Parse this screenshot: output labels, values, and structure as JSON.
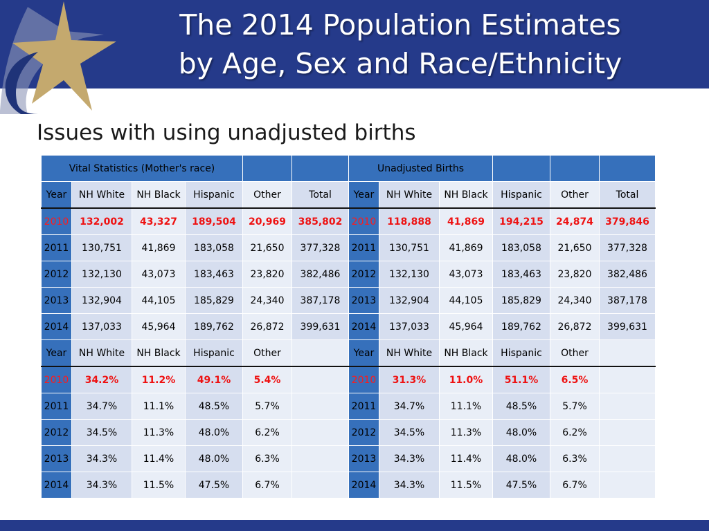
{
  "slide": {
    "title_line1": "The 2014 Population Estimates",
    "title_line2": "by Age, Sex and Race/Ethnicity",
    "subtitle": "Issues with using unadjusted births"
  },
  "colors": {
    "header_bg": "#253a8a",
    "cell_blue": "#3670bb",
    "highlight_red": "#ee1111"
  },
  "table": {
    "left_banner": "Vital Statistics (Mother's race)",
    "right_banner": "Unadjusted Births",
    "count_headers": [
      "Year",
      "NH White",
      "NH Black",
      "Hispanic",
      "Other",
      "Total"
    ],
    "count_rows": [
      {
        "left": [
          "2010",
          "132,002",
          "43,327",
          "189,504",
          "20,969",
          "385,802"
        ],
        "right": [
          "2010",
          "118,888",
          "41,869",
          "194,215",
          "24,874",
          "379,846"
        ]
      },
      {
        "left": [
          "2011",
          "130,751",
          "41,869",
          "183,058",
          "21,650",
          "377,328"
        ],
        "right": [
          "2011",
          "130,751",
          "41,869",
          "183,058",
          "21,650",
          "377,328"
        ]
      },
      {
        "left": [
          "2012",
          "132,130",
          "43,073",
          "183,463",
          "23,820",
          "382,486"
        ],
        "right": [
          "2012",
          "132,130",
          "43,073",
          "183,463",
          "23,820",
          "382,486"
        ]
      },
      {
        "left": [
          "2013",
          "132,904",
          "44,105",
          "185,829",
          "24,340",
          "387,178"
        ],
        "right": [
          "2013",
          "132,904",
          "44,105",
          "185,829",
          "24,340",
          "387,178"
        ]
      },
      {
        "left": [
          "2014",
          "137,033",
          "45,964",
          "189,762",
          "26,872",
          "399,631"
        ],
        "right": [
          "2014",
          "137,033",
          "45,964",
          "189,762",
          "26,872",
          "399,631"
        ]
      }
    ],
    "pct_headers": [
      "Year",
      "NH White",
      "NH Black",
      "Hispanic",
      "Other"
    ],
    "pct_rows": [
      {
        "left": [
          "2010",
          "34.2%",
          "11.2%",
          "49.1%",
          "5.4%"
        ],
        "right": [
          "2010",
          "31.3%",
          "11.0%",
          "51.1%",
          "6.5%"
        ]
      },
      {
        "left": [
          "2011",
          "34.7%",
          "11.1%",
          "48.5%",
          "5.7%"
        ],
        "right": [
          "2011",
          "34.7%",
          "11.1%",
          "48.5%",
          "5.7%"
        ]
      },
      {
        "left": [
          "2012",
          "34.5%",
          "11.3%",
          "48.0%",
          "6.2%"
        ],
        "right": [
          "2012",
          "34.5%",
          "11.3%",
          "48.0%",
          "6.2%"
        ]
      },
      {
        "left": [
          "2013",
          "34.3%",
          "11.4%",
          "48.0%",
          "6.3%"
        ],
        "right": [
          "2013",
          "34.3%",
          "11.4%",
          "48.0%",
          "6.3%"
        ]
      },
      {
        "left": [
          "2014",
          "34.3%",
          "11.5%",
          "47.5%",
          "6.7%"
        ],
        "right": [
          "2014",
          "34.3%",
          "11.5%",
          "47.5%",
          "6.7%"
        ]
      }
    ]
  }
}
